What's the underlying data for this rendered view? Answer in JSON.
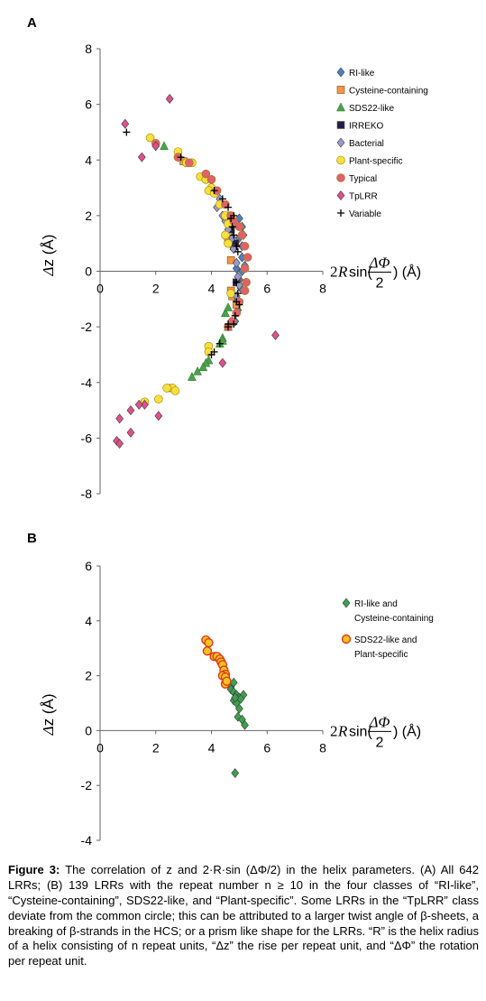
{
  "panels": {
    "a_label": "A",
    "b_label": "B"
  },
  "caption": {
    "figure_label": "Figure 3:",
    "text": " The correlation of z and 2·R·sin (ΔΦ/2) in the helix parameters. (A) All 642 LRRs; (B) 139 LRRs with the repeat number n ≥ 10 in the four classes of “RI-like”, “Cysteine-containing”, SDS22-like, and “Plant-specific”. Some LRRs in the “TpLRR” class deviate from the common circle; this can be attributed to a larger twist angle of β-sheets, a breaking of β-strands in the HCS; or a prism like shape for the LRRs. “R” is the helix radius of a helix consisting of n repeat units, “Δz” the rise per repeat unit, and “ΔΦ” the rotation per repeat unit."
  },
  "chart_data": [
    {
      "type": "scatter",
      "panel": "A",
      "xlabel": "2Rsin(ΔΦ/2) (Å)",
      "ylabel": "Δz (Å)",
      "xlim": [
        0,
        8
      ],
      "ylim": [
        -8,
        8
      ],
      "xticks": [
        "0",
        "2",
        "4",
        "6",
        "8"
      ],
      "yticks": [
        "8",
        "6",
        "4",
        "2",
        "0",
        "-2",
        "-4",
        "-6",
        "-8"
      ],
      "grid": false,
      "legend_position": "right",
      "series": [
        {
          "name": "RI-like",
          "marker": "diamond",
          "color": "#4f81bd",
          "points": [
            [
              5.0,
              1.9
            ],
            [
              5.1,
              1.6
            ],
            [
              5.0,
              1.2
            ],
            [
              5.15,
              1.3
            ],
            [
              5.1,
              0.9
            ],
            [
              5.1,
              0.5
            ],
            [
              5.2,
              0.2
            ],
            [
              5.1,
              0.0
            ],
            [
              4.9,
              0.1
            ],
            [
              5.0,
              -0.3
            ],
            [
              5.05,
              -0.6
            ],
            [
              4.9,
              -1.0
            ],
            [
              4.95,
              -1.4
            ],
            [
              4.85,
              -1.8
            ]
          ]
        },
        {
          "name": "Cysteine-containing",
          "marker": "square",
          "color": "#f79646",
          "points": [
            [
              3.0,
              3.95
            ],
            [
              4.6,
              1.1
            ],
            [
              4.7,
              0.4
            ],
            [
              4.8,
              0.9
            ],
            [
              4.7,
              -0.7
            ],
            [
              4.75,
              -0.9
            ],
            [
              2.5,
              -4.2
            ],
            [
              4.9,
              -1.2
            ]
          ]
        },
        {
          "name": "SDS22-like",
          "marker": "triangle",
          "color": "#4aa34a",
          "points": [
            [
              2.3,
              4.5
            ],
            [
              4.5,
              -1.5
            ],
            [
              4.6,
              -1.3
            ],
            [
              4.4,
              -2.4
            ],
            [
              4.3,
              -2.6
            ],
            [
              3.9,
              -3.2
            ],
            [
              3.8,
              -3.3
            ],
            [
              3.5,
              -3.6
            ],
            [
              3.3,
              -3.8
            ],
            [
              4.6,
              -2.0
            ],
            [
              4.4,
              -2.5
            ],
            [
              3.7,
              -3.45
            ]
          ]
        },
        {
          "name": "IRREKO",
          "marker": "square",
          "color": "#1f1f4f",
          "points": [
            [
              4.6,
              2.0
            ],
            [
              4.7,
              1.5
            ],
            [
              4.85,
              1.0
            ],
            [
              4.9,
              -0.4
            ]
          ]
        },
        {
          "name": "Bacterial",
          "marker": "diamond",
          "color": "#9999cc",
          "points": [
            [
              4.2,
              2.3
            ],
            [
              4.4,
              2.0
            ],
            [
              4.6,
              1.5
            ],
            [
              4.8,
              0.8
            ],
            [
              4.9,
              0.3
            ],
            [
              4.95,
              -0.2
            ],
            [
              5.0,
              -0.5
            ],
            [
              4.9,
              -0.9
            ],
            [
              4.3,
              2.6
            ],
            [
              4.5,
              1.8
            ],
            [
              4.75,
              1.2
            ]
          ]
        },
        {
          "name": "Plant-specific",
          "marker": "circle",
          "color": "#f6e03a",
          "points": [
            [
              1.8,
              4.8
            ],
            [
              2.8,
              4.3
            ],
            [
              3.1,
              3.9
            ],
            [
              3.3,
              3.9
            ],
            [
              3.6,
              3.4
            ],
            [
              3.8,
              3.3
            ],
            [
              4.0,
              3.0
            ],
            [
              3.9,
              2.9
            ],
            [
              4.1,
              2.8
            ],
            [
              4.3,
              2.4
            ],
            [
              4.5,
              2.0
            ],
            [
              4.6,
              1.7
            ],
            [
              4.5,
              1.3
            ],
            [
              4.6,
              1.0
            ],
            [
              4.7,
              -0.8
            ],
            [
              3.9,
              -2.7
            ],
            [
              3.9,
              -2.9
            ],
            [
              2.6,
              -4.2
            ],
            [
              2.7,
              -4.3
            ],
            [
              2.4,
              -4.2
            ],
            [
              2.1,
              -4.6
            ],
            [
              1.6,
              -4.7
            ]
          ]
        },
        {
          "name": "Typical",
          "marker": "circle",
          "color": "#e0606b",
          "points": [
            [
              2.0,
              4.6
            ],
            [
              2.8,
              4.1
            ],
            [
              3.2,
              3.9
            ],
            [
              3.8,
              3.5
            ],
            [
              4.0,
              3.3
            ],
            [
              4.2,
              2.9
            ],
            [
              4.5,
              2.4
            ],
            [
              4.7,
              2.0
            ],
            [
              4.8,
              1.8
            ],
            [
              5.0,
              1.6
            ],
            [
              5.1,
              1.3
            ],
            [
              5.2,
              0.9
            ],
            [
              5.3,
              0.5
            ],
            [
              5.2,
              0.1
            ],
            [
              5.25,
              -0.4
            ],
            [
              5.2,
              -0.7
            ],
            [
              5.0,
              -1.1
            ],
            [
              4.9,
              -1.5
            ],
            [
              4.75,
              -1.8
            ],
            [
              4.6,
              -2.0
            ]
          ]
        },
        {
          "name": "TpLRR",
          "marker": "diamond",
          "color": "#e0508b",
          "points": [
            [
              0.9,
              5.3
            ],
            [
              2.5,
              6.2
            ],
            [
              1.5,
              4.1
            ],
            [
              2.0,
              4.5
            ],
            [
              1.6,
              -4.8
            ],
            [
              1.4,
              -4.8
            ],
            [
              1.1,
              -5.0
            ],
            [
              0.7,
              -5.3
            ],
            [
              0.6,
              -6.1
            ],
            [
              0.7,
              -6.2
            ],
            [
              1.1,
              -5.8
            ],
            [
              2.1,
              -5.2
            ],
            [
              4.4,
              -3.3
            ],
            [
              6.3,
              -2.3
            ]
          ]
        },
        {
          "name": "Variable",
          "marker": "plus",
          "color": "#000000",
          "points": [
            [
              0.95,
              5.0
            ],
            [
              2.9,
              4.1
            ],
            [
              4.1,
              2.9
            ],
            [
              4.4,
              2.6
            ],
            [
              4.6,
              2.3
            ],
            [
              4.7,
              1.9
            ],
            [
              4.75,
              1.6
            ],
            [
              4.8,
              1.3
            ],
            [
              4.9,
              0.9
            ],
            [
              4.95,
              0.7
            ],
            [
              4.9,
              -0.4
            ],
            [
              4.95,
              -0.8
            ],
            [
              4.9,
              -1.1
            ],
            [
              5.0,
              -1.2
            ],
            [
              4.85,
              -1.6
            ],
            [
              4.8,
              -1.9
            ],
            [
              4.6,
              -2.0
            ],
            [
              4.3,
              -2.6
            ],
            [
              4.1,
              -2.9
            ],
            [
              4.0,
              -3.0
            ],
            [
              4.6,
              -1.9
            ],
            [
              4.8,
              2.0
            ]
          ]
        }
      ]
    },
    {
      "type": "scatter",
      "panel": "B",
      "xlabel": "2Rsin(ΔΦ/2) (Å)",
      "ylabel": "Δz (Å)",
      "xlim": [
        0,
        8
      ],
      "ylim": [
        -4,
        6
      ],
      "xticks": [
        "0",
        "2",
        "4",
        "6",
        "8"
      ],
      "yticks": [
        "6",
        "4",
        "2",
        "0",
        "-2",
        "-4"
      ],
      "grid": false,
      "legend_position": "right",
      "series": [
        {
          "name": "RI-like and Cysteine-containing",
          "legend_lines": [
            "RI-like and",
            "Cysteine-containing"
          ],
          "marker": "diamond",
          "color": "#3f9f4f",
          "points": [
            [
              4.6,
              1.7
            ],
            [
              4.7,
              1.6
            ],
            [
              4.8,
              1.75
            ],
            [
              4.7,
              1.5
            ],
            [
              4.8,
              1.4
            ],
            [
              4.9,
              1.3
            ],
            [
              5.0,
              1.2
            ],
            [
              5.15,
              1.3
            ],
            [
              4.8,
              1.1
            ],
            [
              4.9,
              1.0
            ],
            [
              5.0,
              0.8
            ],
            [
              4.95,
              0.5
            ],
            [
              5.1,
              0.4
            ],
            [
              5.2,
              0.2
            ],
            [
              5.05,
              1.15
            ],
            [
              4.85,
              1.2
            ],
            [
              4.85,
              -1.55
            ]
          ]
        },
        {
          "name": "SDS22-like and Plant-specific",
          "legend_lines": [
            "SDS22-like and",
            "Plant-specific"
          ],
          "marker": "circle",
          "color": "#f9c420",
          "edge": "#e03a1a",
          "points": [
            [
              3.8,
              3.3
            ],
            [
              3.9,
              3.2
            ],
            [
              3.85,
              2.9
            ],
            [
              4.1,
              2.7
            ],
            [
              4.2,
              2.7
            ],
            [
              4.3,
              2.6
            ],
            [
              4.35,
              2.5
            ],
            [
              4.4,
              2.4
            ],
            [
              4.45,
              2.2
            ],
            [
              4.5,
              2.05
            ],
            [
              4.4,
              2.0
            ],
            [
              4.5,
              1.95
            ],
            [
              4.5,
              1.7
            ],
            [
              4.55,
              1.8
            ]
          ]
        }
      ]
    }
  ]
}
